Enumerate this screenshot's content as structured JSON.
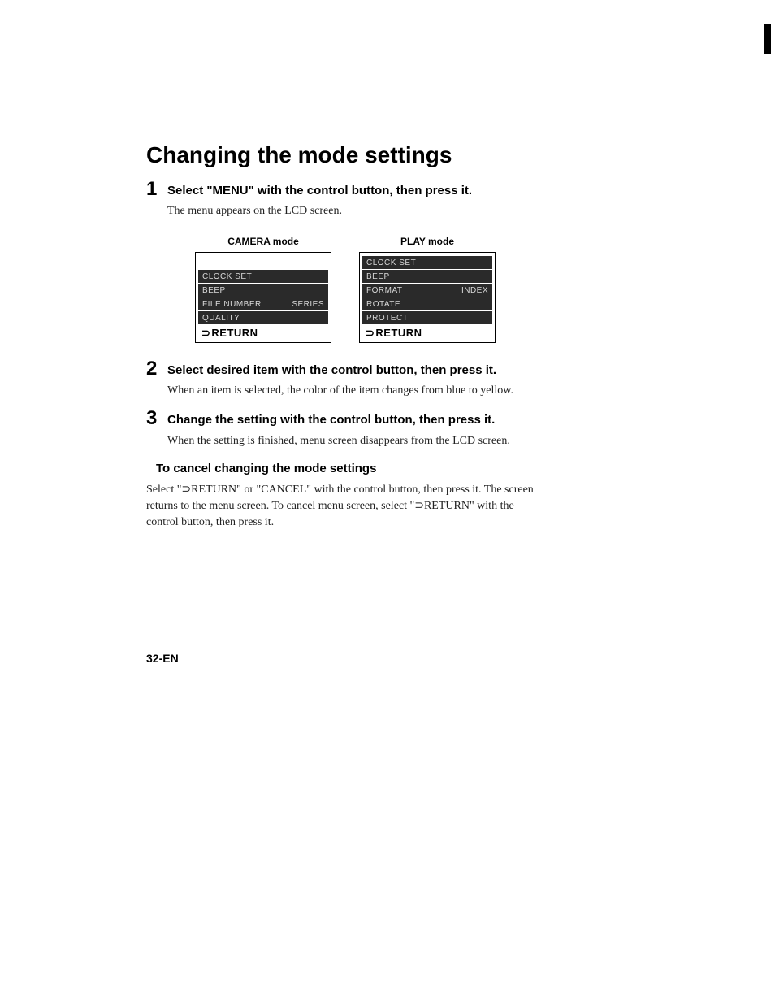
{
  "title": "Changing the mode settings",
  "steps": [
    {
      "num": "1",
      "heading": "Select \"MENU\" with the control button, then press it.",
      "body": "The menu appears on the LCD screen."
    },
    {
      "num": "2",
      "heading": "Select desired item with the control button, then press it.",
      "body": "When an item is selected, the color of the item changes from blue to yellow."
    },
    {
      "num": "3",
      "heading": "Change the setting with the control button, then press it.",
      "body": "When the setting is finished, menu screen disappears from the LCD screen."
    }
  ],
  "screens": {
    "camera": {
      "label": "CAMERA mode",
      "rows": [
        {
          "left": "CLOCK SET",
          "right": ""
        },
        {
          "left": "BEEP",
          "right": ""
        },
        {
          "left": "FILE NUMBER",
          "right": "SERIES"
        },
        {
          "left": "QUALITY",
          "right": ""
        }
      ],
      "return": "RETURN"
    },
    "play": {
      "label": "PLAY mode",
      "rows": [
        {
          "left": "CLOCK SET",
          "right": ""
        },
        {
          "left": "BEEP",
          "right": ""
        },
        {
          "left": "FORMAT",
          "right": "INDEX"
        },
        {
          "left": "ROTATE",
          "right": ""
        },
        {
          "left": "PROTECT",
          "right": ""
        }
      ],
      "return": "RETURN"
    }
  },
  "cancel": {
    "heading": "To cancel changing the mode settings",
    "body": "Select \"⊃RETURN\" or \"CANCEL\" with the control button, then press it. The screen returns to the menu screen. To cancel menu screen, select \"⊃RETURN\" with the control button, then press it."
  },
  "pageNum": "32-EN"
}
